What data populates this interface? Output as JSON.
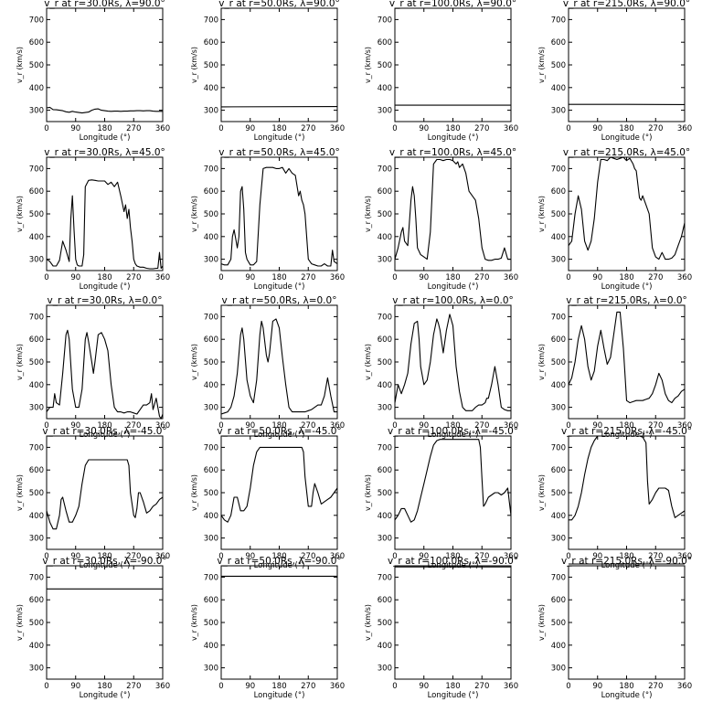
{
  "chart_data": {
    "type": "line",
    "grid": false,
    "xlim": [
      0,
      360
    ],
    "ylim": [
      250,
      750
    ],
    "xticks": [
      "0",
      "90",
      "180",
      "270",
      "360"
    ],
    "yticks": [
      "300",
      "400",
      "500",
      "600",
      "700"
    ],
    "xlabel": "Longitude (°)",
    "ylabel": "v_r (km/s)",
    "panels": [
      {
        "title": "v_r at r=30.0Rs, λ=90.0°",
        "x": [
          0,
          10,
          20,
          30,
          40,
          50,
          60,
          70,
          80,
          90,
          100,
          110,
          120,
          130,
          140,
          150,
          160,
          170,
          180,
          190,
          200,
          210,
          220,
          230,
          240,
          250,
          260,
          270,
          280,
          290,
          300,
          310,
          320,
          330,
          340,
          350,
          360
        ],
        "y": [
          310,
          313,
          303,
          302,
          300,
          298,
          293,
          291,
          295,
          292,
          290,
          288,
          290,
          292,
          300,
          305,
          306,
          300,
          298,
          296,
          295,
          296,
          296,
          295,
          296,
          296,
          297,
          297,
          298,
          298,
          297,
          298,
          298,
          296,
          295,
          295,
          295
        ]
      },
      {
        "title": "v_r at r=50.0Rs, λ=90.0°",
        "x": [
          0,
          360
        ],
        "y": [
          315,
          316
        ]
      },
      {
        "title": "v_r at r=100.0Rs, λ=90.0°",
        "x": [
          0,
          360
        ],
        "y": [
          322,
          322
        ]
      },
      {
        "title": "v_r at r=215.0Rs, λ=90.0°",
        "x": [
          0,
          180,
          360
        ],
        "y": [
          326,
          326,
          325
        ]
      },
      {
        "title": "v_r at r=30.0Rs, λ=45.0°",
        "x": [
          0,
          10,
          20,
          30,
          40,
          50,
          60,
          70,
          75,
          80,
          85,
          90,
          95,
          100,
          110,
          115,
          120,
          130,
          140,
          150,
          160,
          170,
          180,
          190,
          200,
          210,
          220,
          230,
          240,
          245,
          250,
          255,
          260,
          265,
          270,
          275,
          280,
          290,
          300,
          310,
          320,
          330,
          340,
          345,
          350,
          355,
          360
        ],
        "y": [
          300,
          290,
          270,
          270,
          295,
          380,
          340,
          290,
          480,
          580,
          430,
          300,
          275,
          270,
          270,
          320,
          620,
          648,
          650,
          648,
          645,
          645,
          645,
          630,
          640,
          620,
          640,
          580,
          510,
          540,
          480,
          520,
          440,
          380,
          300,
          280,
          270,
          265,
          265,
          260,
          258,
          258,
          260,
          260,
          330,
          260,
          270
        ]
      },
      {
        "title": "v_r at r=50.0Rs, λ=45.0°",
        "x": [
          0,
          10,
          20,
          30,
          35,
          40,
          45,
          50,
          55,
          60,
          65,
          70,
          75,
          80,
          90,
          100,
          110,
          120,
          130,
          140,
          150,
          160,
          170,
          180,
          190,
          200,
          210,
          220,
          230,
          240,
          245,
          250,
          255,
          260,
          265,
          270,
          280,
          290,
          300,
          310,
          320,
          330,
          340,
          345,
          350,
          360
        ],
        "y": [
          280,
          275,
          275,
          300,
          400,
          430,
          390,
          350,
          400,
          600,
          620,
          520,
          330,
          300,
          275,
          275,
          290,
          540,
          700,
          705,
          705,
          705,
          700,
          700,
          705,
          680,
          700,
          680,
          670,
          580,
          600,
          560,
          540,
          500,
          400,
          300,
          280,
          275,
          270,
          270,
          280,
          270,
          270,
          340,
          290,
          280
        ]
      },
      {
        "title": "v_r at r=100.0Rs, λ=45.0°",
        "x": [
          0,
          10,
          20,
          25,
          30,
          40,
          50,
          55,
          60,
          65,
          70,
          80,
          90,
          100,
          110,
          120,
          130,
          140,
          150,
          160,
          170,
          180,
          190,
          195,
          200,
          210,
          220,
          230,
          240,
          250,
          260,
          270,
          280,
          290,
          300,
          310,
          320,
          330,
          340,
          350,
          360
        ],
        "y": [
          300,
          350,
          420,
          440,
          380,
          360,
          560,
          620,
          580,
          480,
          350,
          320,
          310,
          300,
          420,
          720,
          740,
          740,
          735,
          740,
          740,
          735,
          720,
          730,
          705,
          720,
          680,
          600,
          580,
          560,
          480,
          350,
          300,
          295,
          295,
          300,
          300,
          305,
          350,
          300,
          300
        ]
      },
      {
        "title": "v_r at r=215.0Rs, λ=45.0°",
        "x": [
          0,
          10,
          20,
          30,
          40,
          50,
          60,
          70,
          80,
          90,
          100,
          110,
          120,
          130,
          140,
          150,
          160,
          170,
          180,
          190,
          200,
          205,
          210,
          220,
          225,
          230,
          240,
          250,
          260,
          270,
          280,
          290,
          300,
          310,
          320,
          330,
          340,
          350,
          360
        ],
        "y": [
          360,
          380,
          500,
          580,
          520,
          380,
          340,
          380,
          480,
          640,
          740,
          740,
          735,
          750,
          745,
          740,
          745,
          750,
          735,
          745,
          720,
          700,
          690,
          570,
          560,
          580,
          540,
          500,
          350,
          310,
          300,
          330,
          300,
          300,
          305,
          320,
          360,
          400,
          460
        ]
      },
      {
        "title": "v_r at r=30.0Rs, λ=0.0°",
        "x": [
          0,
          10,
          20,
          25,
          30,
          40,
          50,
          60,
          65,
          70,
          80,
          90,
          100,
          110,
          120,
          125,
          130,
          140,
          145,
          150,
          160,
          170,
          180,
          190,
          200,
          210,
          220,
          230,
          240,
          250,
          260,
          270,
          280,
          290,
          300,
          310,
          320,
          325,
          330,
          340,
          350,
          355,
          360
        ],
        "y": [
          280,
          300,
          300,
          360,
          320,
          310,
          450,
          620,
          640,
          600,
          380,
          300,
          300,
          380,
          600,
          630,
          590,
          500,
          450,
          500,
          620,
          630,
          600,
          550,
          400,
          300,
          280,
          280,
          275,
          280,
          280,
          275,
          270,
          290,
          310,
          310,
          320,
          360,
          290,
          340,
          260,
          250,
          270
        ]
      },
      {
        "title": "v_r at r=50.0Rs, λ=0.0°",
        "x": [
          0,
          10,
          20,
          30,
          40,
          50,
          60,
          65,
          70,
          80,
          90,
          100,
          110,
          120,
          125,
          130,
          140,
          145,
          150,
          160,
          170,
          180,
          190,
          200,
          210,
          220,
          230,
          240,
          250,
          260,
          270,
          280,
          290,
          300,
          310,
          320,
          330,
          340,
          350,
          360
        ],
        "y": [
          270,
          275,
          280,
          300,
          350,
          450,
          620,
          650,
          600,
          420,
          350,
          320,
          420,
          620,
          680,
          650,
          530,
          500,
          540,
          680,
          690,
          650,
          520,
          400,
          300,
          280,
          280,
          280,
          280,
          280,
          285,
          290,
          300,
          310,
          310,
          350,
          430,
          350,
          280,
          280
        ]
      },
      {
        "title": "v_r at r=100.0Rs, λ=0.0°",
        "x": [
          0,
          10,
          20,
          30,
          40,
          50,
          60,
          70,
          75,
          80,
          90,
          100,
          110,
          120,
          130,
          135,
          140,
          150,
          160,
          170,
          180,
          190,
          200,
          210,
          220,
          230,
          240,
          250,
          260,
          270,
          280,
          285,
          290,
          300,
          310,
          320,
          330,
          340,
          350,
          360
        ],
        "y": [
          320,
          400,
          360,
          400,
          450,
          580,
          670,
          680,
          600,
          480,
          400,
          420,
          500,
          620,
          690,
          670,
          640,
          540,
          640,
          710,
          660,
          480,
          370,
          300,
          285,
          285,
          285,
          300,
          310,
          310,
          320,
          340,
          340,
          400,
          480,
          400,
          300,
          290,
          285,
          285
        ]
      },
      {
        "title": "v_r at r=215.0Rs, λ=0.0°",
        "x": [
          0,
          10,
          20,
          30,
          40,
          50,
          60,
          70,
          80,
          90,
          100,
          110,
          120,
          130,
          140,
          150,
          160,
          170,
          180,
          190,
          200,
          210,
          220,
          230,
          240,
          250,
          260,
          270,
          280,
          290,
          300,
          310,
          320,
          330,
          340,
          350,
          360
        ],
        "y": [
          400,
          430,
          500,
          600,
          660,
          600,
          480,
          420,
          460,
          570,
          640,
          560,
          490,
          520,
          620,
          720,
          720,
          560,
          330,
          320,
          325,
          330,
          330,
          330,
          335,
          340,
          360,
          400,
          450,
          420,
          360,
          330,
          320,
          340,
          350,
          370,
          380
        ]
      },
      {
        "title": "v_r at r=30.0Rs, λ=-45.0°",
        "x": [
          0,
          10,
          20,
          30,
          40,
          45,
          50,
          60,
          70,
          80,
          90,
          100,
          110,
          120,
          130,
          140,
          150,
          160,
          170,
          180,
          190,
          200,
          210,
          220,
          230,
          240,
          250,
          255,
          260,
          270,
          275,
          280,
          285,
          290,
          300,
          310,
          320,
          330,
          340,
          350,
          360
        ],
        "y": [
          420,
          370,
          340,
          340,
          400,
          470,
          480,
          420,
          370,
          370,
          400,
          440,
          540,
          620,
          645,
          645,
          645,
          645,
          645,
          645,
          645,
          645,
          645,
          645,
          645,
          645,
          645,
          620,
          500,
          400,
          390,
          430,
          500,
          500,
          460,
          410,
          420,
          440,
          450,
          470,
          480
        ]
      },
      {
        "title": "v_r at r=50.0Rs, λ=-45.0°",
        "x": [
          0,
          10,
          20,
          30,
          40,
          50,
          60,
          70,
          80,
          90,
          100,
          110,
          120,
          130,
          140,
          150,
          160,
          170,
          180,
          190,
          200,
          210,
          220,
          230,
          240,
          250,
          255,
          260,
          270,
          280,
          285,
          290,
          300,
          310,
          320,
          330,
          340,
          350,
          360
        ],
        "y": [
          400,
          380,
          370,
          400,
          480,
          480,
          420,
          420,
          440,
          520,
          620,
          680,
          700,
          700,
          700,
          700,
          700,
          700,
          700,
          700,
          700,
          700,
          700,
          700,
          700,
          700,
          680,
          570,
          440,
          440,
          500,
          540,
          500,
          450,
          460,
          470,
          480,
          500,
          520
        ]
      },
      {
        "title": "v_r at r=100.0Rs, λ=-45.0°",
        "x": [
          0,
          10,
          20,
          30,
          40,
          50,
          60,
          70,
          80,
          90,
          100,
          110,
          120,
          130,
          140,
          150,
          160,
          170,
          180,
          190,
          200,
          210,
          220,
          230,
          240,
          250,
          260,
          265,
          270,
          275,
          280,
          290,
          300,
          310,
          320,
          330,
          340,
          350,
          355,
          360
        ],
        "y": [
          380,
          400,
          430,
          430,
          400,
          370,
          380,
          420,
          480,
          540,
          600,
          660,
          710,
          730,
          735,
          735,
          735,
          735,
          735,
          735,
          735,
          735,
          735,
          735,
          735,
          735,
          735,
          700,
          560,
          440,
          450,
          480,
          490,
          500,
          500,
          490,
          500,
          520,
          460,
          400
        ]
      },
      {
        "title": "v_r at r=215.0Rs, λ=-45.0°",
        "x": [
          0,
          10,
          20,
          30,
          40,
          50,
          60,
          70,
          80,
          90,
          100,
          110,
          120,
          130,
          140,
          150,
          160,
          170,
          180,
          190,
          200,
          210,
          220,
          230,
          240,
          245,
          250,
          260,
          270,
          280,
          290,
          300,
          310,
          320,
          330,
          340,
          350,
          360
        ],
        "y": [
          380,
          380,
          400,
          440,
          500,
          580,
          650,
          700,
          730,
          750,
          750,
          750,
          750,
          750,
          750,
          750,
          750,
          750,
          750,
          750,
          750,
          750,
          750,
          745,
          720,
          550,
          450,
          470,
          500,
          520,
          520,
          520,
          510,
          440,
          390,
          400,
          410,
          420
        ]
      },
      {
        "title": "v_r at r=30.0Rs, λ=-90.0°",
        "x": [
          0,
          360
        ],
        "y": [
          648,
          648
        ]
      },
      {
        "title": "v_r at r=50.0Rs, λ=-90.0°",
        "x": [
          0,
          360
        ],
        "y": [
          704,
          704
        ]
      },
      {
        "title": "v_r at r=100.0Rs, λ=-90.0°",
        "x": [
          0,
          360
        ],
        "y": [
          745,
          745
        ]
      },
      {
        "title": "v_r at r=215.0Rs, λ=-90.0°",
        "x": [
          0,
          360
        ],
        "y": [
          758,
          758
        ]
      }
    ]
  }
}
